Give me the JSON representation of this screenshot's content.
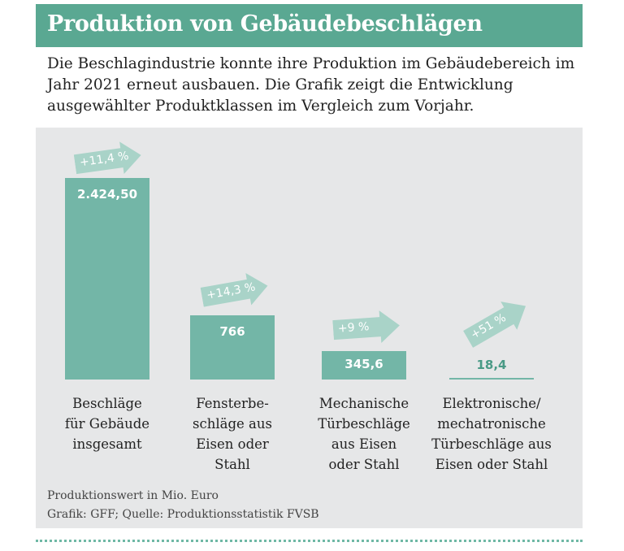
{
  "header": {
    "title": "Produktion von Gebäudebeschlägen"
  },
  "intro": "Die Beschlagindustrie konnte ihre Produktion im Gebäudebereich im Jahr 2021 erneut ausbauen. Die Grafik zeigt die Entwicklung ausgewählter Produktklassen im Vergleich zum Vorjahr.",
  "chart_data": {
    "type": "bar",
    "categories": [
      "Beschläge für Gebäude insgesamt",
      "Fensterbe-schläge aus Eisen oder Stahl",
      "Mechanische Türbeschläge aus Eisen oder Stahl",
      "Elektronische/ mechatronische Türbeschläge aus Eisen oder Stahl"
    ],
    "values": [
      2424.5,
      766,
      345.6,
      18.4
    ],
    "value_labels": [
      "2.424,50",
      "766",
      "345,6",
      "18,4"
    ],
    "changes": [
      "+11,4 %",
      "+14,3 %",
      "+9 %",
      "+51 %"
    ],
    "unit": "Produktionswert in Mio. Euro",
    "bar_color": "#73b6a7",
    "arrow_color": "#a9d3c8"
  },
  "footer": {
    "unit": "Produktionswert in Mio. Euro",
    "source": "Grafik: GFF; Quelle: Produktionsstatistik FVSB"
  },
  "colors": {
    "header": "#5aa892",
    "panel": "#e6e7e8"
  }
}
